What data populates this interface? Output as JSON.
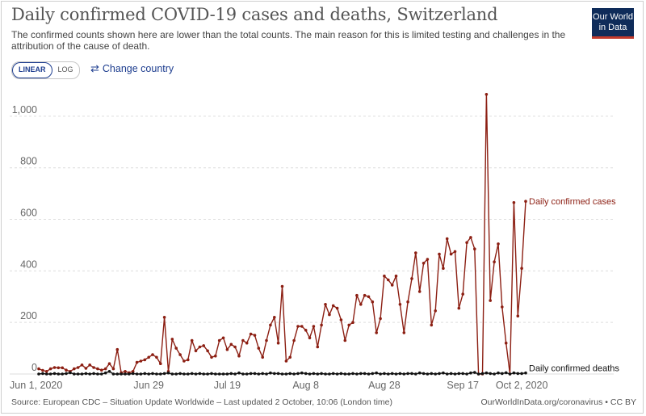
{
  "header": {
    "title": "Daily confirmed COVID-19 cases and deaths, Switzerland",
    "subtitle": "The confirmed counts shown here are lower than the total counts. The main reason for this is limited testing and challenges in the attribution of the cause of death.",
    "logo_line1": "Our World",
    "logo_line2": "in Data"
  },
  "controls": {
    "linear_label": "LINEAR",
    "log_label": "LOG",
    "change_country_label": "Change country",
    "change_country_icon": "swap-arrows-icon",
    "active_scale": "LINEAR"
  },
  "footer": {
    "source": "Source: European CDC – Situation Update Worldwide – Last updated 2 October, 10:06 (London time)",
    "credit": "OurWorldInData.org/coronavirus • CC BY"
  },
  "colors": {
    "cases": "#8c1f13",
    "deaths": "#111111",
    "grid": "#dddddd",
    "axis_text": "#666666",
    "brand": "#0f2c5a"
  },
  "chart_data": {
    "type": "line",
    "x_start": "2020-06-01",
    "x_end": "2020-10-02",
    "x_tick_labels": [
      "Jun 1, 2020",
      "Jun 29",
      "Jul 19",
      "Aug 8",
      "Aug 28",
      "Sep 17",
      "Oct 2, 2020"
    ],
    "y_ticks": [
      0,
      200,
      400,
      600,
      800,
      1000
    ],
    "y_tick_labels": [
      "0",
      "200",
      "400",
      "600",
      "800",
      "1,000"
    ],
    "ylim": [
      0,
      1100
    ],
    "grid": "horizontal dashed",
    "legend": "inline labels at line ends",
    "series": [
      {
        "name": "Daily confirmed cases",
        "values": [
          20,
          14,
          10,
          20,
          25,
          24,
          24,
          15,
          10,
          20,
          25,
          35,
          22,
          35,
          25,
          20,
          15,
          20,
          40,
          20,
          95,
          5,
          10,
          5,
          10,
          45,
          50,
          55,
          65,
          75,
          65,
          40,
          220,
          10,
          135,
          100,
          75,
          50,
          55,
          130,
          90,
          105,
          110,
          90,
          65,
          70,
          130,
          140,
          95,
          115,
          105,
          70,
          130,
          120,
          155,
          150,
          100,
          65,
          130,
          190,
          220,
          120,
          340,
          50,
          65,
          130,
          185,
          185,
          170,
          140,
          185,
          105,
          190,
          270,
          230,
          265,
          255,
          210,
          130,
          190,
          200,
          305,
          270,
          305,
          300,
          280,
          160,
          215,
          380,
          365,
          345,
          380,
          270,
          160,
          280,
          370,
          470,
          320,
          430,
          445,
          190,
          245,
          465,
          410,
          525,
          465,
          475,
          255,
          310,
          510,
          530,
          485,
          0,
          0,
          1085,
          285,
          435,
          505,
          260,
          120,
          0,
          665,
          225,
          410,
          670
        ],
        "end_label": "Daily confirmed cases"
      },
      {
        "name": "Daily confirmed deaths",
        "values": [
          0,
          2,
          0,
          0,
          2,
          0,
          0,
          2,
          5,
          0,
          0,
          0,
          2,
          0,
          2,
          0,
          0,
          4,
          10,
          0,
          0,
          0,
          0,
          0,
          2,
          0,
          0,
          2,
          0,
          2,
          0,
          0,
          2,
          4,
          0,
          0,
          2,
          0,
          0,
          2,
          0,
          2,
          0,
          0,
          2,
          0,
          0,
          0,
          0,
          2,
          0,
          4,
          0,
          0,
          2,
          2,
          0,
          2,
          0,
          4,
          2,
          2,
          0,
          0,
          2,
          0,
          2,
          4,
          2,
          0,
          2,
          0,
          2,
          0,
          0,
          2,
          0,
          2,
          0,
          0,
          2,
          0,
          2,
          2,
          0,
          2,
          4,
          0,
          2,
          0,
          2,
          0,
          2,
          0,
          2,
          2,
          0,
          4,
          2,
          0,
          2,
          0,
          2,
          4,
          0,
          2,
          0,
          2,
          2,
          0,
          4,
          6,
          0,
          2,
          4,
          2,
          0,
          4,
          2,
          5,
          0,
          4,
          2,
          2,
          4
        ],
        "end_label": "Daily confirmed deaths"
      }
    ]
  }
}
